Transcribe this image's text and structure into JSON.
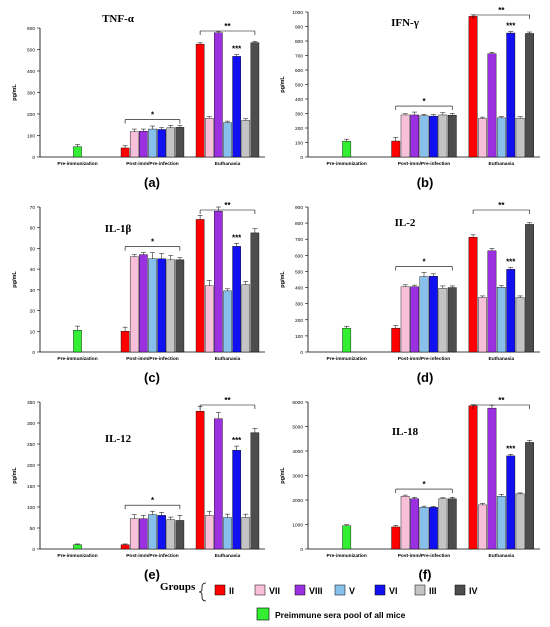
{
  "figure": {
    "groups_label": "Groups",
    "legend": [
      {
        "key": "II",
        "color": "#ff0000"
      },
      {
        "key": "VII",
        "color": "#f8bfd8"
      },
      {
        "key": "VIII",
        "color": "#9b30e0"
      },
      {
        "key": "V",
        "color": "#88c0ec"
      },
      {
        "key": "VI",
        "color": "#1010f0"
      },
      {
        "key": "III",
        "color": "#c4c4c4"
      },
      {
        "key": "IV",
        "color": "#4d4d4d"
      }
    ],
    "preimmune_label": "Preimmune sera pool of all mice",
    "preimmune_color": "#33ee33"
  },
  "chart_data": [
    {
      "type": "bar",
      "panel": "(a)",
      "title": "TNF-α",
      "ylabel": "pg/mL",
      "categories": [
        "Pre-immunization",
        "Post-imm/Pre-infection",
        "Euthanasia"
      ],
      "ylim": [
        0,
        600
      ],
      "yticks": [
        0,
        100,
        200,
        300,
        400,
        500,
        600
      ],
      "preimmune": {
        "value": 48,
        "err": 10
      },
      "series": [
        {
          "name": "II",
          "values": [
            null,
            42,
            525
          ],
          "errors": [
            null,
            10,
            6
          ]
        },
        {
          "name": "VII",
          "values": [
            null,
            118,
            180
          ],
          "errors": [
            null,
            12,
            8
          ]
        },
        {
          "name": "VIII",
          "values": [
            null,
            120,
            578
          ],
          "errors": [
            null,
            10,
            6
          ]
        },
        {
          "name": "V",
          "values": [
            null,
            130,
            160
          ],
          "errors": [
            null,
            14,
            7
          ]
        },
        {
          "name": "VI",
          "values": [
            null,
            128,
            468
          ],
          "errors": [
            null,
            8,
            8
          ]
        },
        {
          "name": "III",
          "values": [
            null,
            136,
            170
          ],
          "errors": [
            null,
            10,
            8
          ]
        },
        {
          "name": "IV",
          "values": [
            null,
            138,
            532
          ],
          "errors": [
            null,
            8,
            6
          ]
        }
      ],
      "significance": [
        {
          "cat": 1,
          "label": "*"
        },
        {
          "cat": 2,
          "label": "**"
        },
        {
          "cat": 2,
          "series": "VI",
          "label": "***"
        }
      ]
    },
    {
      "type": "bar",
      "panel": "(b)",
      "title": "IFN-γ",
      "ylabel": "pg/mL",
      "categories": [
        "Pre-immunization",
        "Post-imm/Pre-infection",
        "Euthanasia"
      ],
      "ylim": [
        0,
        1000
      ],
      "yticks": [
        0,
        100,
        200,
        300,
        400,
        500,
        600,
        700,
        800,
        900,
        1000
      ],
      "preimmune": {
        "value": 108,
        "err": 15
      },
      "series": [
        {
          "name": "II",
          "values": [
            null,
            110,
            970
          ],
          "errors": [
            null,
            25,
            10
          ]
        },
        {
          "name": "VII",
          "values": [
            null,
            290,
            265
          ],
          "errors": [
            null,
            8,
            10
          ]
        },
        {
          "name": "VIII",
          "values": [
            null,
            290,
            712
          ],
          "errors": [
            null,
            20,
            10
          ]
        },
        {
          "name": "V",
          "values": [
            null,
            285,
            270
          ],
          "errors": [
            null,
            10,
            8
          ]
        },
        {
          "name": "VI",
          "values": [
            null,
            282,
            855
          ],
          "errors": [
            null,
            10,
            10
          ]
        },
        {
          "name": "III",
          "values": [
            null,
            290,
            268
          ],
          "errors": [
            null,
            15,
            10
          ]
        },
        {
          "name": "IV",
          "values": [
            null,
            288,
            852
          ],
          "errors": [
            null,
            12,
            10
          ]
        }
      ],
      "significance": [
        {
          "cat": 1,
          "label": "*"
        },
        {
          "cat": 2,
          "label": "**"
        },
        {
          "cat": 2,
          "series": "VI",
          "label": "***"
        }
      ]
    },
    {
      "type": "bar",
      "panel": "(c)",
      "title": "IL-1β",
      "ylabel": "pg/mL",
      "categories": [
        "Pre-immunization",
        "Post-imm/Pre-infection",
        "Euthanasia"
      ],
      "ylim": [
        0,
        70
      ],
      "yticks": [
        0,
        10,
        20,
        30,
        40,
        50,
        60,
        70
      ],
      "preimmune": {
        "value": 10.5,
        "err": 2
      },
      "series": [
        {
          "name": "II",
          "values": [
            null,
            10,
            64
          ],
          "errors": [
            null,
            2,
            2
          ]
        },
        {
          "name": "VII",
          "values": [
            null,
            46,
            32
          ],
          "errors": [
            null,
            1,
            2.5
          ]
        },
        {
          "name": "VIII",
          "values": [
            null,
            47,
            68
          ],
          "errors": [
            null,
            1,
            2
          ]
        },
        {
          "name": "V",
          "values": [
            null,
            45,
            29.5
          ],
          "errors": [
            null,
            3,
            1
          ]
        },
        {
          "name": "VI",
          "values": [
            null,
            45,
            51
          ],
          "errors": [
            null,
            2.5,
            1.5
          ]
        },
        {
          "name": "III",
          "values": [
            null,
            44.5,
            32.5
          ],
          "errors": [
            null,
            2,
            1.5
          ]
        },
        {
          "name": "IV",
          "values": [
            null,
            44.5,
            57.5
          ],
          "errors": [
            null,
            1,
            2
          ]
        }
      ],
      "significance": [
        {
          "cat": 1,
          "label": "*"
        },
        {
          "cat": 2,
          "label": "**"
        },
        {
          "cat": 2,
          "series": "VI",
          "label": "***"
        }
      ]
    },
    {
      "type": "bar",
      "panel": "(d)",
      "title": "IL-2",
      "ylabel": "pg/mL",
      "categories": [
        "Pre-immunization",
        "Post-imm/Pre-infection",
        "Euthanasia"
      ],
      "ylim": [
        0,
        900
      ],
      "yticks": [
        0,
        100,
        200,
        300,
        400,
        500,
        600,
        700,
        800,
        900
      ],
      "preimmune": {
        "value": 148,
        "err": 12
      },
      "series": [
        {
          "name": "II",
          "values": [
            null,
            148,
            712
          ],
          "errors": [
            null,
            15,
            15
          ]
        },
        {
          "name": "VII",
          "values": [
            null,
            405,
            338
          ],
          "errors": [
            null,
            12,
            10
          ]
        },
        {
          "name": "VIII",
          "values": [
            null,
            405,
            628
          ],
          "errors": [
            null,
            10,
            15
          ]
        },
        {
          "name": "V",
          "values": [
            null,
            468,
            402
          ],
          "errors": [
            null,
            25,
            10
          ]
        },
        {
          "name": "VI",
          "values": [
            null,
            470,
            513
          ],
          "errors": [
            null,
            15,
            10
          ]
        },
        {
          "name": "III",
          "values": [
            null,
            395,
            338
          ],
          "errors": [
            null,
            15,
            10
          ]
        },
        {
          "name": "IV",
          "values": [
            null,
            400,
            792
          ],
          "errors": [
            null,
            10,
            10
          ]
        }
      ],
      "significance": [
        {
          "cat": 1,
          "label": "*"
        },
        {
          "cat": 2,
          "label": "**"
        },
        {
          "cat": 2,
          "series": "VI",
          "label": "***"
        }
      ]
    },
    {
      "type": "bar",
      "panel": "(e)",
      "title": "IL-12",
      "ylabel": "pg/mL",
      "categories": [
        "Pre-immunization",
        "Post-imm/Pre-infection",
        "Euthanasia"
      ],
      "ylim": [
        0,
        350
      ],
      "yticks": [
        0,
        50,
        100,
        150,
        200,
        250,
        300,
        350
      ],
      "preimmune": {
        "value": 10,
        "err": 2
      },
      "series": [
        {
          "name": "II",
          "values": [
            null,
            10,
            328
          ],
          "errors": [
            null,
            2,
            12
          ]
        },
        {
          "name": "VII",
          "values": [
            null,
            72,
            80
          ],
          "errors": [
            null,
            10,
            10
          ]
        },
        {
          "name": "VIII",
          "values": [
            null,
            72,
            310
          ],
          "errors": [
            null,
            8,
            15
          ]
        },
        {
          "name": "V",
          "values": [
            null,
            82,
            75
          ],
          "errors": [
            null,
            8,
            8
          ]
        },
        {
          "name": "VI",
          "values": [
            null,
            80,
            235
          ],
          "errors": [
            null,
            7,
            10
          ]
        },
        {
          "name": "III",
          "values": [
            null,
            70,
            75
          ],
          "errors": [
            null,
            6,
            8
          ]
        },
        {
          "name": "IV",
          "values": [
            null,
            68,
            277
          ],
          "errors": [
            null,
            12,
            10
          ]
        }
      ],
      "significance": [
        {
          "cat": 1,
          "label": "*"
        },
        {
          "cat": 2,
          "label": "**"
        },
        {
          "cat": 2,
          "series": "VI",
          "label": "***"
        }
      ]
    },
    {
      "type": "bar",
      "panel": "(f)",
      "title": "IL-18",
      "ylabel": "pg/mL",
      "categories": [
        "Pre-immunization",
        "Post-imm/Pre-infection",
        "Euthanasia"
      ],
      "ylim": [
        0,
        6000
      ],
      "yticks": [
        0,
        1000,
        2000,
        3000,
        4000,
        5000,
        6000
      ],
      "preimmune": {
        "value": 950,
        "err": 40
      },
      "series": [
        {
          "name": "II",
          "values": [
            null,
            900,
            5850
          ],
          "errors": [
            null,
            60,
            40
          ]
        },
        {
          "name": "VII",
          "values": [
            null,
            2150,
            1800
          ],
          "errors": [
            null,
            50,
            60
          ]
        },
        {
          "name": "VIII",
          "values": [
            null,
            2050,
            5750
          ],
          "errors": [
            null,
            60,
            120
          ]
        },
        {
          "name": "V",
          "values": [
            null,
            1700,
            2150
          ],
          "errors": [
            null,
            50,
            80
          ]
        },
        {
          "name": "VI",
          "values": [
            null,
            1700,
            3800
          ],
          "errors": [
            null,
            40,
            60
          ]
        },
        {
          "name": "III",
          "values": [
            null,
            2050,
            2250
          ],
          "errors": [
            null,
            40,
            40
          ]
        },
        {
          "name": "IV",
          "values": [
            null,
            2050,
            4350
          ],
          "errors": [
            null,
            60,
            80
          ]
        }
      ],
      "significance": [
        {
          "cat": 1,
          "label": "*"
        },
        {
          "cat": 2,
          "label": "**"
        },
        {
          "cat": 2,
          "series": "VI",
          "label": "***"
        }
      ]
    }
  ]
}
